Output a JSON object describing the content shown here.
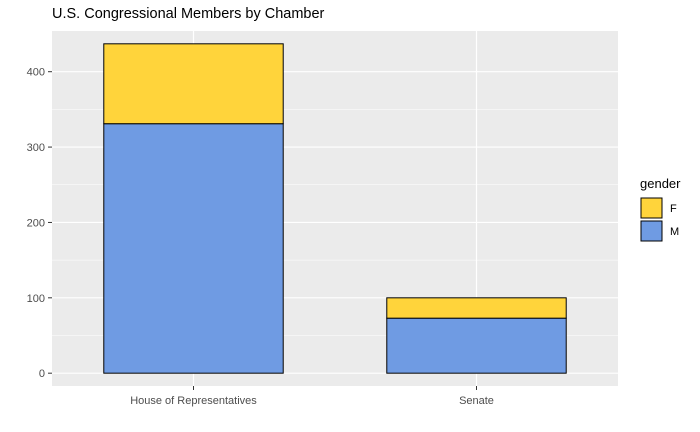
{
  "chart_data": {
    "type": "bar",
    "stacked": true,
    "title": "U.S. Congressional Members by Chamber",
    "xlabel": "",
    "ylabel": "",
    "categories": [
      "House of Representatives",
      "Senate"
    ],
    "series": [
      {
        "name": "M",
        "values": [
          331,
          73
        ],
        "color": "#6f9be3"
      },
      {
        "name": "F",
        "values": [
          106,
          27
        ],
        "color": "#ffd43b"
      }
    ],
    "ylim": [
      -17,
      454
    ],
    "yticks": [
      0,
      100,
      200,
      300,
      400
    ],
    "grid": true,
    "panel_color": "#ebebeb",
    "legend": {
      "title": "gender",
      "position": "right",
      "order": [
        "F",
        "M"
      ]
    }
  }
}
